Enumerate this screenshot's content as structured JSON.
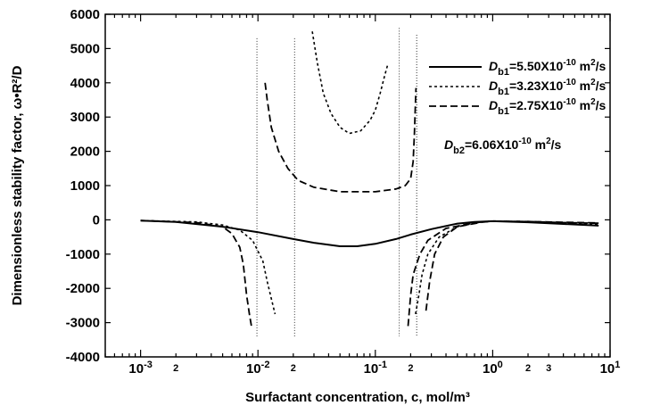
{
  "chart_data": {
    "type": "line",
    "xlabel": "Surfactant concentration, c, mol/m³",
    "ylabel": "Dimensionless stability factor, ω•R²/D",
    "x_scale": "log",
    "xlim": [
      0.0005,
      10
    ],
    "ylim": [
      -4000,
      6000
    ],
    "y_ticks": [
      6000,
      5000,
      4000,
      3000,
      2000,
      1000,
      0,
      -1000,
      -2000,
      -3000,
      -4000
    ],
    "y_tick_labels": [
      "6000",
      "5000",
      "4000",
      "3000",
      "2000",
      "1000",
      "0",
      "-1000",
      "-2000",
      "-3000",
      "-4000"
    ],
    "x_major_ticks": [
      0.001,
      0.01,
      0.1,
      1,
      10
    ],
    "x_major_labels": [
      {
        "base": "10",
        "exp": "-3"
      },
      {
        "base": "10",
        "exp": "-2"
      },
      {
        "base": "10",
        "exp": "-1"
      },
      {
        "base": "10",
        "exp": "0"
      },
      {
        "base": "10",
        "exp": "1"
      }
    ],
    "x_minor_labels": [
      {
        "x": 0.002,
        "text": "2"
      },
      {
        "x": 0.02,
        "text": "2"
      },
      {
        "x": 0.2,
        "text": "2"
      },
      {
        "x": 2,
        "text": "2"
      },
      {
        "x": 3,
        "text": "3"
      }
    ],
    "grid": false,
    "legend_placement": "top-right",
    "legend": [
      {
        "sym": "D",
        "sub": "b1",
        "mid": "=5.50X10",
        "exp": "-10",
        "unit": " m",
        "unit_exp": "2",
        "unit_end": "/s",
        "dash": "none",
        "width": 2
      },
      {
        "sym": "D",
        "sub": "b1",
        "mid": "=3.23X10",
        "exp": "-10",
        "unit": " m",
        "unit_exp": "2",
        "unit_end": "/s",
        "dash": "3,3",
        "width": 1.6
      },
      {
        "sym": "D",
        "sub": "b1",
        "mid": "=2.75X10",
        "exp": "-10",
        "unit": " m",
        "unit_exp": "2",
        "unit_end": "/s",
        "dash": "8,4",
        "width": 1.8
      }
    ],
    "annotation": {
      "sym": "D",
      "sub": "b2",
      "mid": "=6.06X10",
      "exp": "-10",
      "unit": " m",
      "unit_exp": "2",
      "unit_end": "/s"
    },
    "asymptotes": [
      {
        "x": 0.0098,
        "y_range": [
          -3400,
          5300
        ]
      },
      {
        "x": 0.0205,
        "y_range": [
          -3400,
          5300
        ]
      },
      {
        "x": 0.16,
        "y_range": [
          -3400,
          5600
        ]
      },
      {
        "x": 0.225,
        "y_range": [
          -3400,
          5400
        ]
      }
    ],
    "series": [
      {
        "dash": "none",
        "width": 2,
        "segments": [
          [
            [
              0.001,
              -20
            ],
            [
              0.002,
              -60
            ],
            [
              0.005,
              -200
            ],
            [
              0.01,
              -360
            ],
            [
              0.02,
              -560
            ],
            [
              0.03,
              -670
            ],
            [
              0.05,
              -770
            ],
            [
              0.07,
              -770
            ],
            [
              0.1,
              -700
            ],
            [
              0.15,
              -560
            ],
            [
              0.2,
              -430
            ],
            [
              0.3,
              -270
            ],
            [
              0.5,
              -110
            ],
            [
              0.7,
              -60
            ],
            [
              1,
              -40
            ],
            [
              2,
              -70
            ],
            [
              4,
              -120
            ],
            [
              8,
              -170
            ]
          ]
        ]
      },
      {
        "dash": "3,3",
        "width": 1.6,
        "segments": [
          [
            [
              0.001,
              -20
            ],
            [
              0.003,
              -60
            ],
            [
              0.005,
              -150
            ],
            [
              0.007,
              -300
            ],
            [
              0.009,
              -600
            ],
            [
              0.011,
              -1200
            ],
            [
              0.012,
              -1800
            ],
            [
              0.013,
              -2300
            ],
            [
              0.014,
              -2750
            ]
          ],
          [
            [
              0.029,
              5500
            ],
            [
              0.032,
              4600
            ],
            [
              0.036,
              3700
            ],
            [
              0.042,
              3100
            ],
            [
              0.05,
              2700
            ],
            [
              0.06,
              2520
            ],
            [
              0.075,
              2600
            ],
            [
              0.09,
              2900
            ],
            [
              0.1,
              3200
            ],
            [
              0.11,
              3700
            ],
            [
              0.12,
              4200
            ],
            [
              0.128,
              4550
            ]
          ],
          [
            [
              0.22,
              -2750
            ],
            [
              0.235,
              -2200
            ],
            [
              0.25,
              -1600
            ],
            [
              0.28,
              -1000
            ],
            [
              0.35,
              -500
            ],
            [
              0.5,
              -200
            ],
            [
              0.8,
              -60
            ],
            [
              1,
              -30
            ],
            [
              2,
              -60
            ],
            [
              4,
              -100
            ],
            [
              8,
              -130
            ]
          ]
        ]
      },
      {
        "dash": "8,4",
        "width": 1.8,
        "segments": [
          [
            [
              0.001,
              -20
            ],
            [
              0.003,
              -80
            ],
            [
              0.005,
              -200
            ],
            [
              0.006,
              -400
            ],
            [
              0.007,
              -800
            ],
            [
              0.0075,
              -1300
            ],
            [
              0.008,
              -2200
            ],
            [
              0.0085,
              -2800
            ],
            [
              0.0088,
              -3100
            ]
          ],
          [
            [
              0.0115,
              4000
            ],
            [
              0.012,
              3500
            ],
            [
              0.013,
              2700
            ],
            [
              0.015,
              2000
            ],
            [
              0.018,
              1500
            ],
            [
              0.022,
              1150
            ],
            [
              0.03,
              950
            ],
            [
              0.05,
              820
            ],
            [
              0.1,
              820
            ],
            [
              0.15,
              900
            ],
            [
              0.18,
              1000
            ],
            [
              0.2,
              1200
            ],
            [
              0.21,
              1700
            ],
            [
              0.215,
              2500
            ],
            [
              0.22,
              3500
            ],
            [
              0.222,
              3850
            ]
          ],
          [
            [
              0.19,
              -3100
            ],
            [
              0.2,
              -2200
            ],
            [
              0.21,
              -1600
            ],
            [
              0.24,
              -1000
            ],
            [
              0.28,
              -600
            ],
            [
              0.4,
              -250
            ],
            [
              0.7,
              -80
            ],
            [
              1,
              -40
            ],
            [
              2,
              -50
            ],
            [
              4,
              -80
            ],
            [
              8,
              -100
            ]
          ],
          [
            [
              0.27,
              -2650
            ],
            [
              0.29,
              -1800
            ],
            [
              0.32,
              -1000
            ],
            [
              0.38,
              -500
            ],
            [
              0.5,
              -200
            ],
            [
              0.8,
              -70
            ],
            [
              1,
              -40
            ],
            [
              2,
              -50
            ],
            [
              4,
              -70
            ],
            [
              8,
              -90
            ]
          ]
        ]
      }
    ]
  }
}
